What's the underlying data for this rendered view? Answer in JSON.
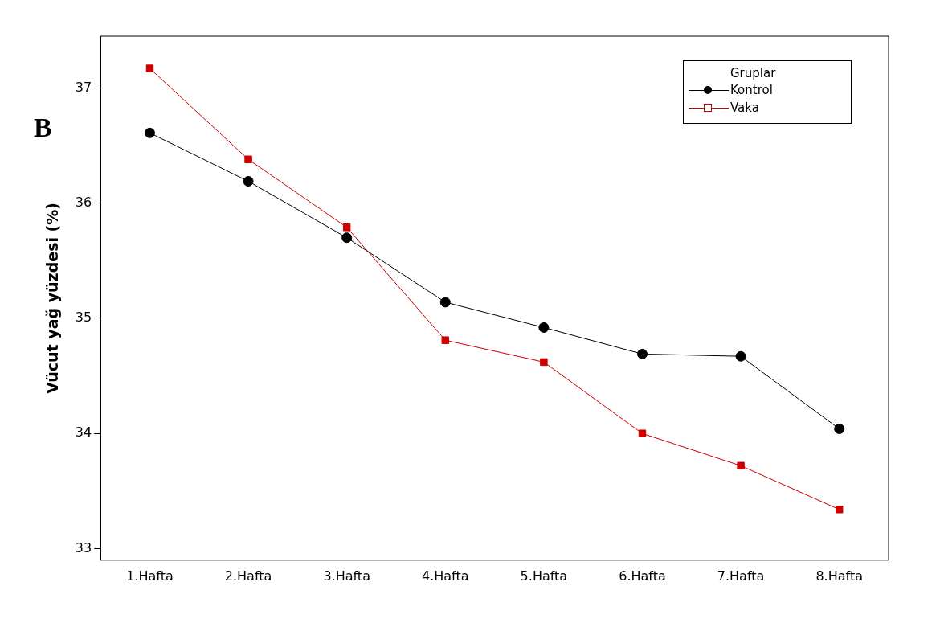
{
  "chart_data": {
    "type": "line",
    "ylabel": "Vücut yağ yüzdesi (%)",
    "legend_title": "Gruplar",
    "annotations": [
      "B"
    ],
    "categories": [
      "1.Hafta",
      "2.Hafta",
      "3.Hafta",
      "4.Hafta",
      "5.Hafta",
      "6.Hafta",
      "7.Hafta",
      "8.Hafta"
    ],
    "series": [
      {
        "name": "Kontrol",
        "color": "#000000",
        "marker": "circle",
        "values": [
          36.61,
          36.19,
          35.7,
          35.14,
          34.92,
          34.69,
          34.67,
          34.04
        ]
      },
      {
        "name": "Vaka",
        "color": "#cc0000",
        "marker": "square",
        "values": [
          37.17,
          36.38,
          35.79,
          34.81,
          34.62,
          34.0,
          33.72,
          33.34
        ]
      }
    ],
    "ylim": [
      32.9,
      37.45
    ],
    "yticks": [
      33,
      34,
      35,
      36,
      37
    ],
    "grid": false,
    "legend": "top right",
    "line_style": "solid"
  }
}
